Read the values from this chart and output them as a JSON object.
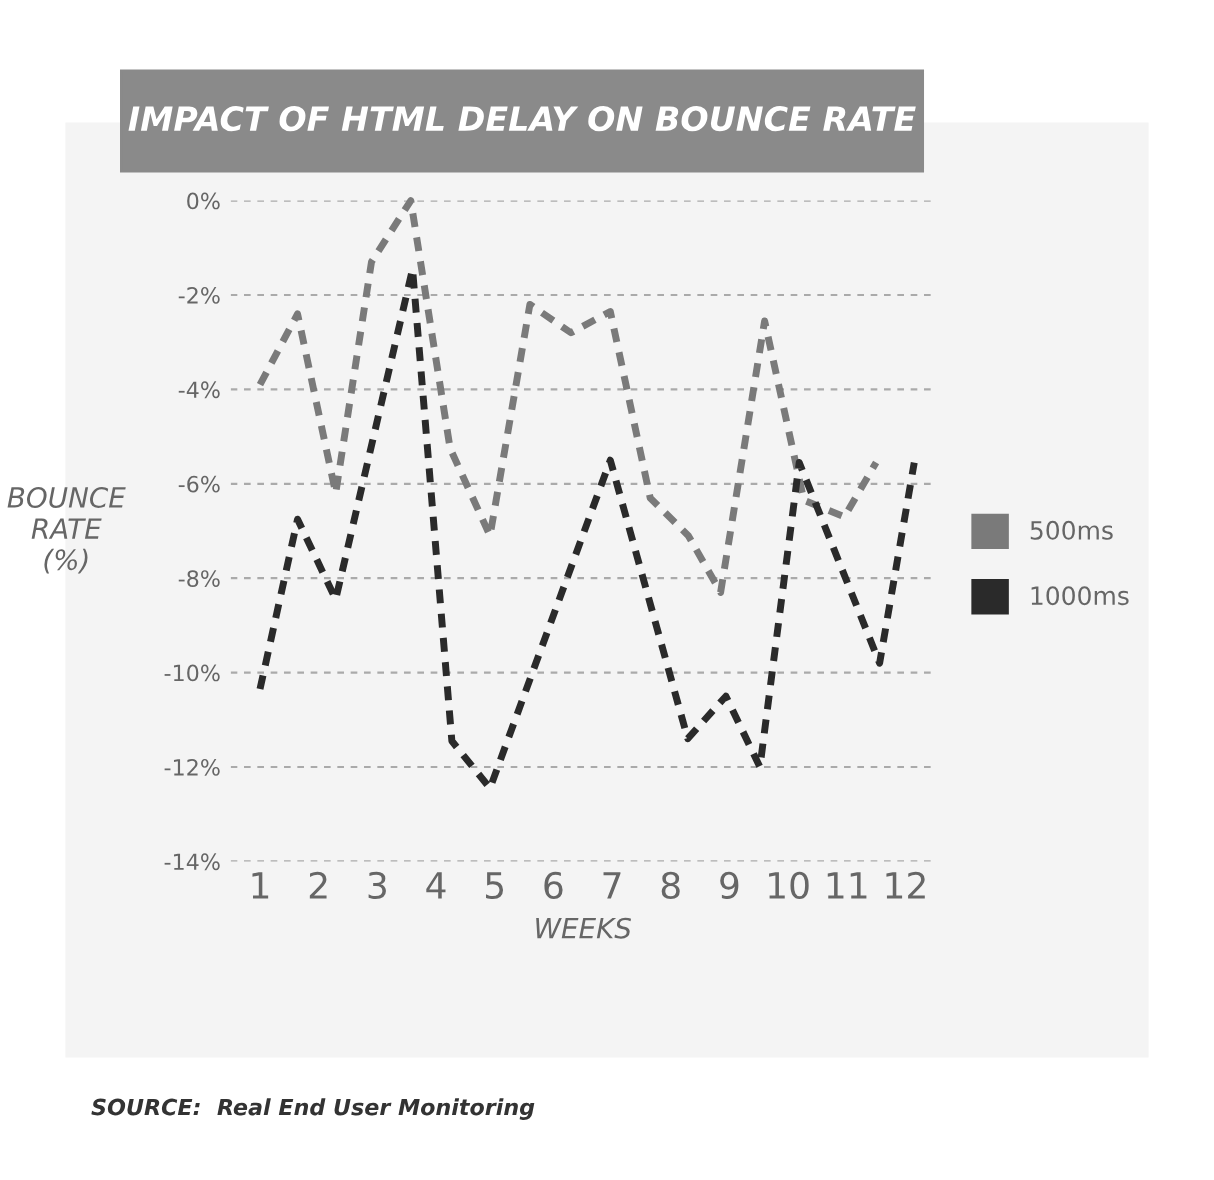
{
  "chart_data": {
    "type": "line",
    "title": "IMPACT OF HTML DELAY ON BOUNCE RATE",
    "xlabel": "WEEKS",
    "ylabel": "BOUNCE\nRATE\n(%)",
    "xlim": [
      0.5,
      12.5
    ],
    "xticks": [
      1,
      2,
      3,
      4,
      5,
      6,
      7,
      8,
      9,
      10,
      11,
      12
    ],
    "ylim": [
      -14,
      0
    ],
    "yticks": [
      {
        "value": 0,
        "label": "0%"
      },
      {
        "value": -2,
        "label": "-2%"
      },
      {
        "value": -4,
        "label": "-4%"
      },
      {
        "value": -6,
        "label": "-6%"
      },
      {
        "value": -8,
        "label": "-8%"
      },
      {
        "value": -10,
        "label": "-10%"
      },
      {
        "value": -12,
        "label": "-12%"
      },
      {
        "value": -14,
        "label": "-14%"
      }
    ],
    "grid": "y",
    "legend": "right",
    "line_style": "dashed",
    "marker": "none",
    "series": [
      {
        "name": "500ms",
        "color": "#7a7a7a",
        "x": [
          1,
          1.64,
          2.29,
          2.9,
          3.57,
          4.24,
          4.92,
          5.6,
          6.3,
          6.97,
          7.65,
          8.3,
          8.85,
          9.6,
          10.27,
          10.96,
          11.5
        ],
        "values": [
          -3.9,
          -2.4,
          -6.2,
          -1.3,
          0,
          -5.25,
          -7.1,
          -2.2,
          -2.8,
          -2.35,
          -6.3,
          -7.1,
          -8.3,
          -2.55,
          -6.35,
          -6.7,
          -5.55
        ]
      },
      {
        "name": "1000ms",
        "color": "#2a2a2a",
        "x": [
          1,
          1.64,
          2.29,
          3.6,
          4.27,
          4.92,
          6.97,
          8.29,
          8.94,
          9.52,
          10.19,
          11.56,
          12.15
        ],
        "values": [
          -10.35,
          -6.75,
          -8.45,
          -1.45,
          -11.45,
          -12.45,
          -5.5,
          -11.4,
          -10.5,
          -12.0,
          -5.55,
          -9.8,
          -5.55
        ]
      }
    ],
    "annotations": [
      "SOURCE:  Real End User Monitoring"
    ]
  }
}
